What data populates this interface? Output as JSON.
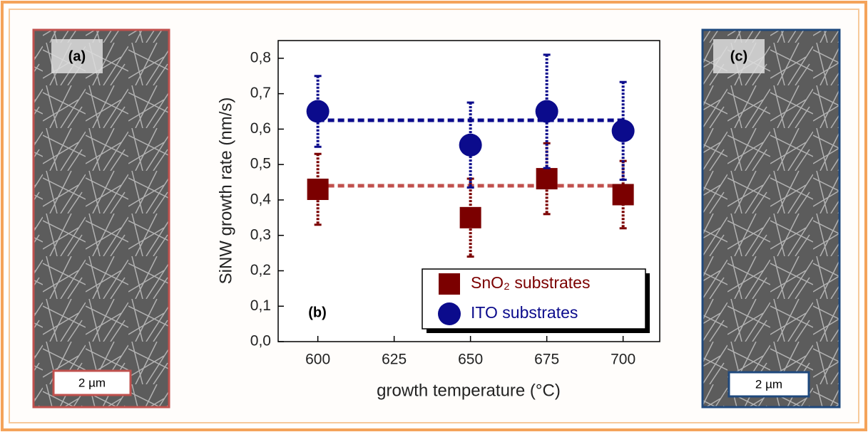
{
  "images": [
    {
      "label": "(a)",
      "scale": "2 µm"
    },
    {
      "label": "(c)",
      "scale": "2 µm"
    }
  ],
  "chart_data": {
    "type": "scatter",
    "annotation": "(b)",
    "x_label": "growth temperature (°C)",
    "y_label": "SiNW growth rate (nm/s)",
    "x": [
      600,
      650,
      675,
      700
    ],
    "series": [
      {
        "name": "SnO₂ substrates",
        "color": "#7b0000",
        "marker": "square",
        "mean_color": "#c0504d",
        "values": [
          0.43,
          0.35,
          0.46,
          0.415
        ],
        "errors": [
          0.1,
          0.11,
          0.1,
          0.095
        ],
        "mean": 0.44
      },
      {
        "name": "ITO substrates",
        "color": "#0b0b8c",
        "marker": "circle",
        "mean_color": "#0b0b8c",
        "values": [
          0.65,
          0.555,
          0.65,
          0.595
        ],
        "errors": [
          0.1,
          0.12,
          0.16,
          0.138
        ],
        "mean": 0.625
      }
    ],
    "xlim": [
      587,
      712
    ],
    "ylim": [
      0,
      0.85
    ],
    "xticks": [
      600,
      625,
      650,
      675,
      700
    ],
    "yticks": [
      {
        "value": 0,
        "label": "0,0"
      },
      {
        "value": 0.1,
        "label": "0,1"
      },
      {
        "value": 0.2,
        "label": "0,2"
      },
      {
        "value": 0.3,
        "label": "0,3"
      },
      {
        "value": 0.4,
        "label": "0,4"
      },
      {
        "value": 0.5,
        "label": "0,5"
      },
      {
        "value": 0.6,
        "label": "0,6"
      },
      {
        "value": 0.7,
        "label": "0,7"
      },
      {
        "value": 0.8,
        "label": "0,8"
      }
    ],
    "grid": false,
    "legend": "lower right"
  }
}
